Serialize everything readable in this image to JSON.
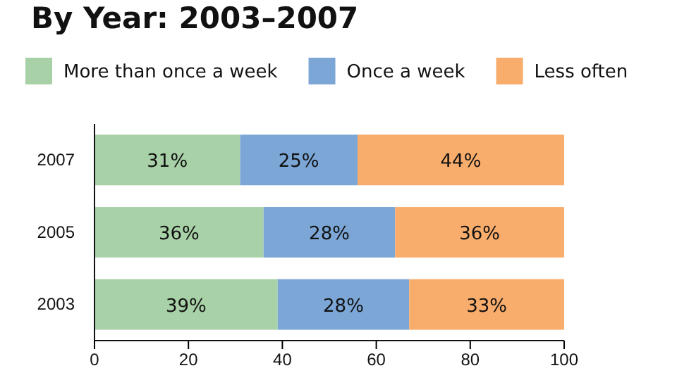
{
  "chart_data": {
    "type": "bar",
    "title": "By Year: 2003–2007",
    "orientation": "horizontal",
    "stacked": true,
    "categories": [
      "2007",
      "2005",
      "2003"
    ],
    "series": [
      {
        "name": "More than once a week",
        "color": "#a8d1a8",
        "values": [
          31,
          36,
          39
        ],
        "value_labels": [
          "31%",
          "36%",
          "39%"
        ]
      },
      {
        "name": "Once a week",
        "color": "#7ba6d6",
        "values": [
          25,
          28,
          28
        ],
        "value_labels": [
          "25%",
          "28%",
          "28%"
        ]
      },
      {
        "name": "Less often",
        "color": "#f9ad6c",
        "values": [
          44,
          36,
          33
        ],
        "value_labels": [
          "44%",
          "36%",
          "33%"
        ]
      }
    ],
    "xlim": [
      0,
      100
    ],
    "xticks": [
      0,
      20,
      40,
      60,
      80,
      100
    ],
    "legend": "top",
    "grid": false
  }
}
